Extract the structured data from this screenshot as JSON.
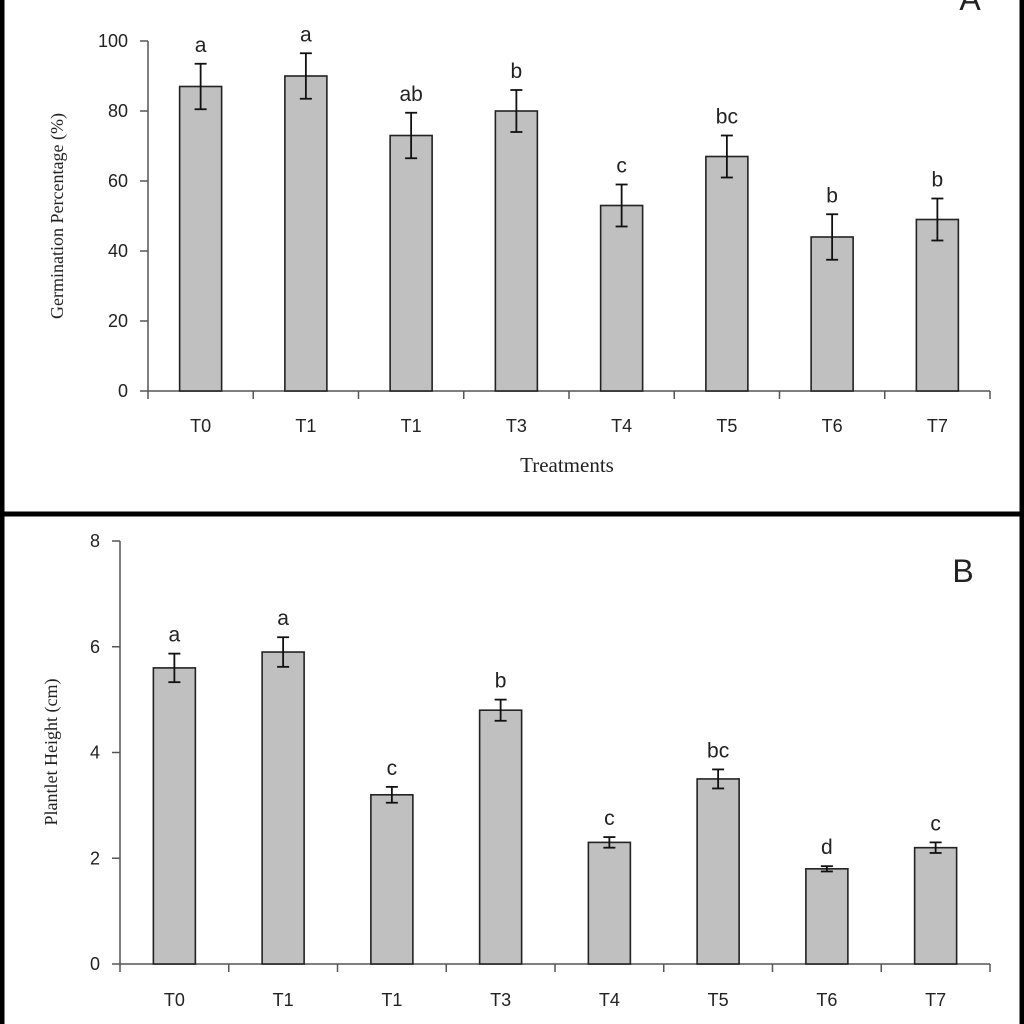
{
  "chart_data": [
    {
      "panel_label": "A",
      "type": "bar",
      "xlabel": "Treatments",
      "ylabel": "Germination  Percentage (%)",
      "categories": [
        "T0",
        "T1",
        "T1",
        "T3",
        "T4",
        "T5",
        "T6",
        "T7"
      ],
      "values": [
        87,
        90,
        73,
        80,
        53,
        67,
        44,
        49
      ],
      "errors": [
        6.5,
        6.5,
        6.5,
        6,
        6,
        6,
        6.5,
        6
      ],
      "significance_letters": [
        "a",
        "a",
        "ab",
        "b",
        "c",
        "bc",
        "b",
        "b"
      ],
      "ylim": [
        0,
        100
      ],
      "yticks": [
        0,
        20,
        40,
        60,
        80,
        100
      ],
      "bar_color": "#c0c0c0",
      "grid": false,
      "legend": "none"
    },
    {
      "panel_label": "B",
      "type": "bar",
      "xlabel": "",
      "ylabel": "Plantlet Height (cm)",
      "categories": [
        "T0",
        "T1",
        "T1",
        "T3",
        "T4",
        "T5",
        "T6",
        "T7"
      ],
      "values": [
        5.6,
        5.9,
        3.2,
        4.8,
        2.3,
        3.5,
        1.8,
        2.2
      ],
      "errors": [
        0.27,
        0.28,
        0.15,
        0.2,
        0.1,
        0.18,
        0.05,
        0.1
      ],
      "significance_letters": [
        "a",
        "a",
        "c",
        "b",
        "c",
        "bc",
        "d",
        "c"
      ],
      "ylim": [
        0,
        8
      ],
      "yticks": [
        0,
        2,
        4,
        6,
        8
      ],
      "bar_color": "#c0c0c0",
      "grid": false,
      "legend": "none"
    }
  ]
}
